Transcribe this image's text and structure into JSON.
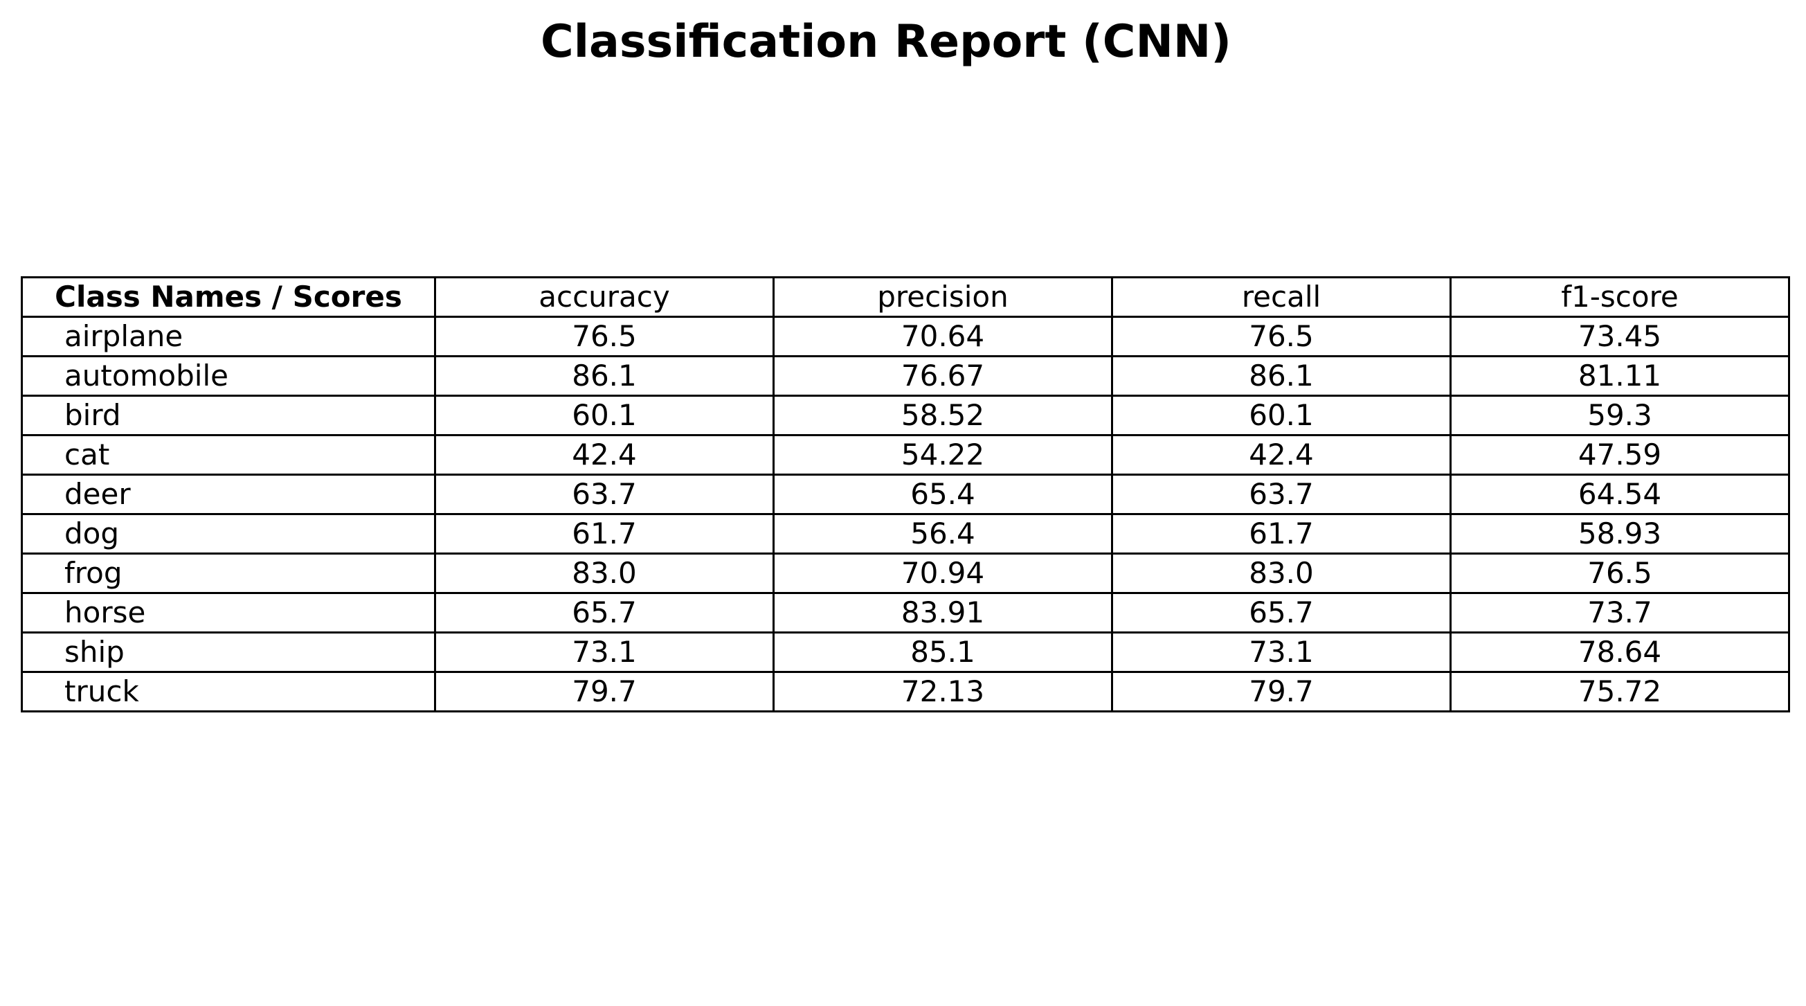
{
  "chart_data": {
    "type": "table",
    "title": "Classification Report (CNN)",
    "corner_label": "Class Names / Scores",
    "columns": [
      "accuracy",
      "precision",
      "recall",
      "f1-score"
    ],
    "rows": [
      {
        "label": "airplane",
        "values": [
          "76.5",
          "70.64",
          "76.5",
          "73.45"
        ]
      },
      {
        "label": "automobile",
        "values": [
          "86.1",
          "76.67",
          "86.1",
          "81.11"
        ]
      },
      {
        "label": "bird",
        "values": [
          "60.1",
          "58.52",
          "60.1",
          "59.3"
        ]
      },
      {
        "label": "cat",
        "values": [
          "42.4",
          "54.22",
          "42.4",
          "47.59"
        ]
      },
      {
        "label": "deer",
        "values": [
          "63.7",
          "65.4",
          "63.7",
          "64.54"
        ]
      },
      {
        "label": "dog",
        "values": [
          "61.7",
          "56.4",
          "61.7",
          "58.93"
        ]
      },
      {
        "label": "frog",
        "values": [
          "83.0",
          "70.94",
          "83.0",
          "76.5"
        ]
      },
      {
        "label": "horse",
        "values": [
          "65.7",
          "83.91",
          "65.7",
          "73.7"
        ]
      },
      {
        "label": "ship",
        "values": [
          "73.1",
          "85.1",
          "73.1",
          "78.64"
        ]
      },
      {
        "label": "truck",
        "values": [
          "79.7",
          "72.13",
          "79.7",
          "75.72"
        ]
      }
    ]
  }
}
